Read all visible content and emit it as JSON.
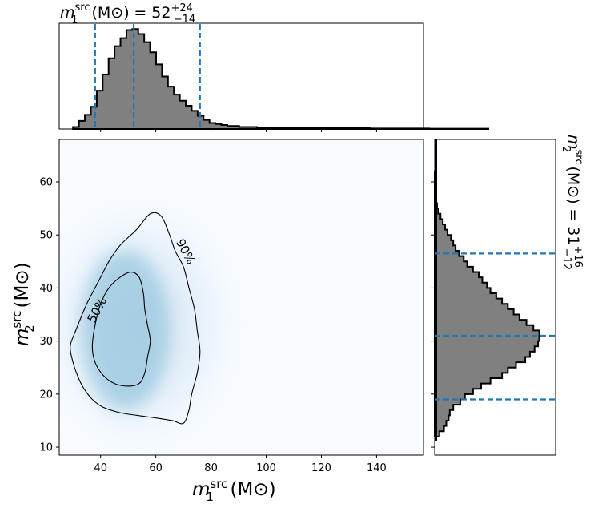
{
  "chart_data": [
    {
      "type": "heatmap",
      "panel": "joint",
      "xlabel": {
        "base": "m",
        "sub": "1",
        "sup": "src",
        "unit": "(M⊙)"
      },
      "ylabel": {
        "base": "m",
        "sub": "2",
        "sup": "src",
        "unit": "(M⊙)"
      },
      "xlim": [
        25,
        157
      ],
      "ylim": [
        8.5,
        68
      ],
      "x_ticks": [
        40,
        60,
        80,
        100,
        120,
        140
      ],
      "y_ticks": [
        10,
        20,
        30,
        40,
        50,
        60
      ],
      "density_peak": {
        "x": 46,
        "y": 30
      },
      "colormap": "Blues",
      "contours": [
        {
          "label": "50%",
          "points": [
            [
              38,
              33
            ],
            [
              37,
              29
            ],
            [
              38,
              26
            ],
            [
              41,
              23.5
            ],
            [
              45,
              22
            ],
            [
              50,
              21.5
            ],
            [
              54,
              22
            ],
            [
              56,
              24
            ],
            [
              57,
              27
            ],
            [
              58,
              30
            ],
            [
              57,
              33
            ],
            [
              56,
              36
            ],
            [
              55.5,
              39
            ],
            [
              54,
              42
            ],
            [
              51,
              43
            ],
            [
              47,
              42
            ],
            [
              43,
              40
            ],
            [
              40,
              37
            ]
          ]
        },
        {
          "label": "90%",
          "points": [
            [
              31,
              32
            ],
            [
              29,
              29
            ],
            [
              30,
              26
            ],
            [
              32,
              23
            ],
            [
              34,
              21
            ],
            [
              37,
              19
            ],
            [
              41,
              17.5
            ],
            [
              47,
              16.5
            ],
            [
              53,
              16
            ],
            [
              60,
              15.5
            ],
            [
              66,
              15
            ],
            [
              70,
              14.5
            ],
            [
              72,
              17
            ],
            [
              73,
              20
            ],
            [
              75,
              24
            ],
            [
              76,
              28
            ],
            [
              75,
              32
            ],
            [
              74,
              36
            ],
            [
              72,
              40
            ],
            [
              70,
              44
            ],
            [
              67,
              47
            ],
            [
              65,
              50
            ],
            [
              62,
              53.5
            ],
            [
              58,
              54
            ],
            [
              53,
              51
            ],
            [
              47,
              48
            ],
            [
              43,
              45
            ],
            [
              39,
              41
            ],
            [
              35,
              37
            ]
          ]
        }
      ]
    },
    {
      "type": "bar",
      "panel": "top-marginal",
      "title": {
        "base": "m",
        "sub": "1",
        "sup": "src",
        "unit": "(M⊙)",
        "value": "52",
        "upper": "+24",
        "lower": "−14"
      },
      "bin_edges_start": 30,
      "bin_width": 2.15,
      "values": [
        2,
        8,
        14,
        22,
        38,
        54,
        70,
        82,
        90,
        98,
        99,
        94,
        86,
        76,
        64,
        52,
        42,
        34,
        28,
        23,
        18,
        13,
        9,
        6,
        5,
        4,
        3,
        3,
        2,
        2,
        2,
        1,
        1,
        1,
        1,
        1,
        1,
        1,
        1,
        1,
        1,
        1,
        1,
        1,
        1,
        1,
        1,
        1,
        1,
        1,
        0.5,
        0.5,
        0.5,
        0.5,
        0.5,
        0.5,
        0.5,
        0.5,
        0.5,
        0.5,
        0.3,
        0.3,
        0.3,
        0.3,
        0.3,
        0.3,
        0.3,
        0.3,
        0.3,
        0.3
      ],
      "ylim": [
        0,
        100
      ],
      "quantiles": [
        38,
        52,
        76
      ]
    },
    {
      "type": "bar",
      "panel": "right-marginal",
      "orientation": "horizontal",
      "title": {
        "base": "m",
        "sub": "2",
        "sup": "src",
        "unit": "(M⊙)",
        "value": "31",
        "upper": "+16",
        "lower": "−12"
      },
      "bin_edges_start": 12,
      "bin_width": 1,
      "values": [
        4,
        8,
        10,
        12,
        13,
        16,
        22,
        26,
        33,
        40,
        48,
        58,
        63,
        70,
        78,
        82,
        86,
        89,
        90,
        90,
        85,
        79,
        73,
        68,
        63,
        58,
        53,
        48,
        45,
        41,
        38,
        33,
        28,
        25,
        21,
        18,
        16,
        14,
        11,
        9,
        7,
        5,
        3,
        2,
        1,
        1,
        0.5,
        0.5,
        0.3,
        0.3
      ],
      "xlim": [
        0,
        100
      ],
      "quantiles": [
        19,
        31,
        46.5
      ]
    }
  ],
  "colors": {
    "contour": "#000000",
    "quantile": "#1f77b4",
    "hist_fill": "#808080",
    "hist_edge": "#000000"
  }
}
